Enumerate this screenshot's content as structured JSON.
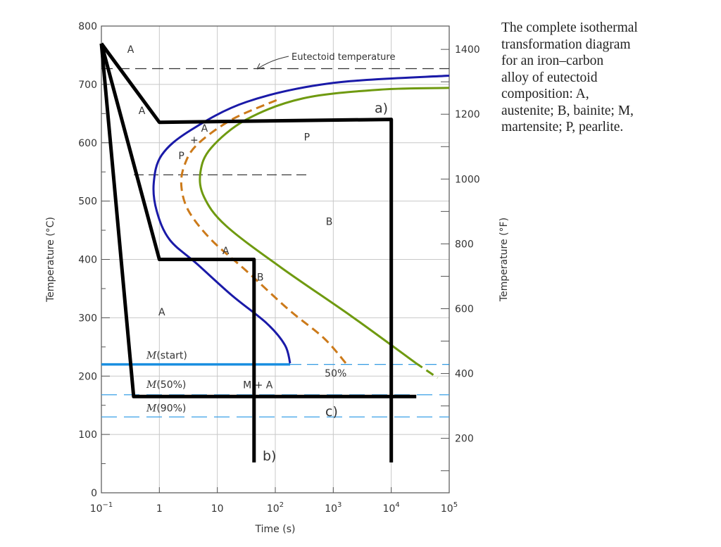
{
  "caption": [
    "The complete isothermal",
    "transformation diagram",
    "for an iron–carbon",
    "alloy of eutectoid",
    "composition: A,",
    "austenite; B, bainite; M,",
    "martensite; P, pearlite."
  ],
  "chart_data": {
    "type": "line",
    "title": "",
    "xlabel": "Time (s)",
    "ylabel": "Temperature (°C)",
    "ylabel_right": "Temperature (°F)",
    "xscale": "log",
    "xlim": [
      0.1,
      100000
    ],
    "ylim": [
      0,
      800
    ],
    "grid": true,
    "x_ticks": [
      {
        "v": 0.1,
        "base": "10",
        "exp": "−1"
      },
      {
        "v": 1,
        "base": "1",
        "exp": ""
      },
      {
        "v": 10,
        "base": "10",
        "exp": ""
      },
      {
        "v": 100,
        "base": "10",
        "exp": "2"
      },
      {
        "v": 1000,
        "base": "10",
        "exp": "3"
      },
      {
        "v": 10000,
        "base": "10",
        "exp": "4"
      },
      {
        "v": 100000,
        "base": "10",
        "exp": "5"
      }
    ],
    "y_ticks": [
      0,
      100,
      200,
      300,
      400,
      500,
      600,
      700,
      800
    ],
    "y_ticks_right_F": [
      200,
      400,
      600,
      800,
      1000,
      1200,
      1400
    ],
    "eutectoid_temperature": 727,
    "eutectoid_label": "Eutectoid temperature",
    "curves": [
      {
        "id": "start",
        "color": "#1a1aa8",
        "style": "solid",
        "points": [
          [
            100000,
            715
          ],
          [
            900,
            702
          ],
          [
            32,
            670
          ],
          [
            3.4,
            621
          ],
          [
            1.1,
            579
          ],
          [
            0.8,
            531
          ],
          [
            0.9,
            483
          ],
          [
            1.5,
            434
          ],
          [
            4.5,
            392
          ],
          [
            18,
            338
          ],
          [
            72,
            290
          ],
          [
            147,
            253
          ],
          [
            180,
            222
          ]
        ]
      },
      {
        "id": "50%",
        "label": "50%",
        "color": "#cc7a1a",
        "style": "dashed",
        "points": [
          [
            105,
            673
          ],
          [
            18,
            640
          ],
          [
            4.5,
            597
          ],
          [
            2.7,
            561
          ],
          [
            2.4,
            525
          ],
          [
            3.2,
            483
          ],
          [
            7.8,
            434
          ],
          [
            32,
            380
          ],
          [
            170,
            314
          ],
          [
            690,
            265
          ],
          [
            1650,
            222
          ]
        ]
      },
      {
        "id": "end",
        "color": "#6f9a10",
        "style": "solid",
        "points": [
          [
            100000,
            694
          ],
          [
            6300,
            691
          ],
          [
            300,
            676
          ],
          [
            32,
            640
          ],
          [
            7.8,
            591
          ],
          [
            5.1,
            549
          ],
          [
            5.9,
            507
          ],
          [
            14,
            458
          ],
          [
            126,
            386
          ],
          [
            2100,
            302
          ],
          [
            26000,
            223
          ]
        ],
        "dashed_tail": [
          [
            26000,
            223
          ],
          [
            63000,
            197
          ]
        ]
      }
    ],
    "nose_line_temp": 545,
    "martensite_lines": [
      {
        "label_m": "M",
        "label": "(start)",
        "temp": 220,
        "color": "#1a8fe0",
        "solid_until": 180
      },
      {
        "label_m": "M",
        "label": "(50%)",
        "temp": 168,
        "color": "#3aa0e8"
      },
      {
        "label_m": "M",
        "label": "(90%)",
        "temp": 130,
        "color": "#3aa0e8"
      }
    ],
    "cooling_paths": [
      {
        "label": "a)",
        "points": [
          [
            0.1,
            770
          ],
          [
            1,
            635
          ],
          [
            10000,
            640
          ],
          [
            10000,
            52
          ]
        ]
      },
      {
        "label": "b)",
        "points": [
          [
            0.1,
            770
          ],
          [
            1,
            400
          ],
          [
            43,
            400
          ],
          [
            43,
            52
          ]
        ]
      },
      {
        "label": "c)",
        "points": [
          [
            0.1,
            770
          ],
          [
            0.36,
            165
          ],
          [
            27000,
            165
          ]
        ]
      }
    ],
    "region_labels": [
      {
        "text": "A",
        "t": 0.32,
        "T": 760
      },
      {
        "text": "A",
        "t": 0.5,
        "T": 655
      },
      {
        "text": "A",
        "t": 6,
        "T": 625
      },
      {
        "text": "+",
        "t": 4,
        "T": 605
      },
      {
        "text": "P",
        "t": 2.4,
        "T": 578
      },
      {
        "text": "P",
        "t": 350,
        "T": 610
      },
      {
        "text": "B",
        "t": 850,
        "T": 465
      },
      {
        "text": "A",
        "t": 14,
        "T": 415
      },
      {
        "text": "B",
        "t": 55,
        "T": 370
      },
      {
        "text": "A",
        "t": 1.1,
        "T": 310
      },
      {
        "text": "M + A",
        "t": 50,
        "T": 185
      },
      {
        "text": "50%",
        "t": 1100,
        "T": 205
      }
    ]
  }
}
